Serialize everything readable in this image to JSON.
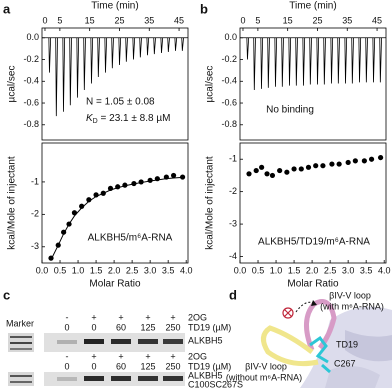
{
  "panel_labels": [
    "a",
    "b",
    "c",
    "d"
  ],
  "chart_data": [
    {
      "type": "spike",
      "x_label": "Time (min)",
      "y_label": "µcal/sec",
      "x": [
        1.5,
        3.8,
        6.2,
        8.5,
        10.9,
        13.2,
        15.6,
        17.9,
        20.3,
        22.6,
        25,
        27.3,
        29.7,
        32,
        34.4,
        36.7,
        39.1,
        41.4,
        43.8,
        46.1
      ],
      "values": [
        -0.32,
        -0.72,
        -0.68,
        -0.62,
        -0.55,
        -0.48,
        -0.42,
        -0.36,
        -0.32,
        -0.28,
        -0.25,
        -0.22,
        -0.2,
        -0.18,
        -0.16,
        -0.15,
        -0.14,
        -0.13,
        -0.12,
        -0.12
      ],
      "color": "#000000",
      "xlim": [
        -1,
        48
      ],
      "xticks": [
        0,
        5,
        15,
        25,
        35,
        45
      ],
      "ylim": [
        -0.94,
        0.09
      ],
      "yticks": [
        {
          "value": 0,
          "label": "0.0"
        },
        {
          "value": -0.2,
          "label": "-0.2"
        },
        {
          "value": -0.4,
          "label": "-0.4"
        },
        {
          "value": -0.6,
          "label": "-0.6"
        },
        {
          "value": -0.8,
          "label": "-0.8"
        }
      ],
      "annotation": "N = 1.05 ± 0.08",
      "kd": {
        "symbol": "K",
        "subscript": "D",
        "text": " = 23.1 ± 8.8 µM"
      }
    },
    {
      "type": "scatter",
      "x_label": "Molar Ratio",
      "y_label": "kcal/Mole of injectant",
      "x": [
        0.25,
        0.45,
        0.6,
        0.75,
        0.9,
        1.1,
        1.3,
        1.5,
        1.7,
        1.9,
        2.1,
        2.3,
        2.55,
        2.75,
        3.0,
        3.2,
        3.45,
        3.65,
        3.9
      ],
      "values": [
        -3.35,
        -2.95,
        -2.55,
        -2.3,
        -1.95,
        -1.75,
        -1.55,
        -1.4,
        -1.35,
        -1.2,
        -1.15,
        -1.1,
        -1.05,
        -1.0,
        -0.95,
        -0.9,
        -0.85,
        -0.8,
        -0.85
      ],
      "fit": [
        -3.4,
        -2.95,
        -2.6,
        -2.3,
        -2.05,
        -1.8,
        -1.6,
        -1.45,
        -1.35,
        -1.25,
        -1.18,
        -1.12,
        -1.06,
        -1.02,
        -0.97,
        -0.94,
        -0.9,
        -0.88,
        -0.86
      ],
      "color": "#000000",
      "xlim": [
        0,
        4.05
      ],
      "xticks": [
        {
          "value": 0,
          "label": "0.0"
        },
        {
          "value": 0.5,
          "label": "0.5"
        },
        {
          "value": 1,
          "label": "1.0"
        },
        {
          "value": 1.5,
          "label": "1.5"
        },
        {
          "value": 2,
          "label": "2.0"
        },
        {
          "value": 2.5,
          "label": "2.5"
        },
        {
          "value": 3,
          "label": "3.0"
        },
        {
          "value": 3.5,
          "label": "3.5"
        },
        {
          "value": 4,
          "label": "4.0"
        }
      ],
      "ylim": [
        -3.5,
        0.2
      ],
      "yticks": [
        -1,
        -2,
        -3
      ],
      "annotation": "ALKBH5/m⁶A-RNA"
    },
    {
      "type": "spike",
      "x_label": "Time (min)",
      "y_label": "µcal/sec",
      "x": [
        1.5,
        3.8,
        6.2,
        8.5,
        10.9,
        13.2,
        15.6,
        17.9,
        20.3,
        22.6,
        25,
        27.3,
        29.7,
        32,
        34.4,
        36.7,
        39.1,
        41.4,
        43.8,
        46.1
      ],
      "values": [
        -0.2,
        -0.48,
        -0.47,
        -0.46,
        -0.45,
        -0.45,
        -0.44,
        -0.44,
        -0.44,
        -0.43,
        -0.43,
        -0.43,
        -0.42,
        -0.42,
        -0.42,
        -0.42,
        -0.41,
        -0.41,
        -0.41,
        -0.41
      ],
      "color": "#000000",
      "xlim": [
        -1,
        48
      ],
      "xticks": [
        0,
        5,
        15,
        25,
        35,
        45
      ],
      "ylim": [
        -0.94,
        0.09
      ],
      "yticks": [
        {
          "value": 0,
          "label": "0.0"
        },
        {
          "value": -0.2,
          "label": "-0.2"
        },
        {
          "value": -0.4,
          "label": "-0.4"
        },
        {
          "value": -0.6,
          "label": "-0.6"
        },
        {
          "value": -0.8,
          "label": "-0.8"
        }
      ],
      "annotation": "No binding"
    },
    {
      "type": "scatter",
      "x_label": "Molar Ratio",
      "y_label": "kcal/Mole of injectant",
      "x": [
        0.25,
        0.45,
        0.6,
        0.75,
        0.9,
        1.1,
        1.3,
        1.5,
        1.7,
        1.9,
        2.1,
        2.3,
        2.55,
        2.75,
        3.0,
        3.2,
        3.45,
        3.65,
        3.9
      ],
      "values": [
        -1.45,
        -1.35,
        -1.25,
        -1.45,
        -1.5,
        -1.35,
        -1.4,
        -1.3,
        -1.3,
        -1.25,
        -1.2,
        -1.2,
        -1.15,
        -1.15,
        -1.1,
        -1.05,
        -1.05,
        -1.0,
        -0.95
      ],
      "color": "#000000",
      "xlim": [
        0,
        4.05
      ],
      "xticks": [
        {
          "value": 0,
          "label": "0.0"
        },
        {
          "value": 0.5,
          "label": "0.5"
        },
        {
          "value": 1,
          "label": "1.0"
        },
        {
          "value": 1.5,
          "label": "1.5"
        },
        {
          "value": 2,
          "label": "2.0"
        },
        {
          "value": 2.5,
          "label": "2.5"
        },
        {
          "value": 3,
          "label": "3.0"
        },
        {
          "value": 3.5,
          "label": "3.5"
        },
        {
          "value": 4,
          "label": "4.0"
        }
      ],
      "ylim": [
        -4.2,
        -0.5
      ],
      "yticks": [
        -1,
        -2,
        -3,
        -4
      ],
      "annotation": "ALKBH5/TD19/m⁶A-RNA"
    }
  ],
  "gel": {
    "marker": "Marker",
    "rows": [
      {
        "label": "2OG",
        "cells": [
          "-",
          "+",
          "+",
          "+",
          "+"
        ]
      },
      {
        "label": "TD19 (µM)",
        "cells": [
          "0",
          "0",
          "60",
          "125",
          "250"
        ]
      }
    ],
    "band_top": "ALKBH5",
    "band_bottom": [
      "ALKBH5",
      "C100SC267S"
    ]
  },
  "structure": {
    "loop_with": [
      "βIV-V loop",
      "(with m⁶A-RNA)"
    ],
    "ligand": "TD19",
    "residue": "C267",
    "loop_without": [
      "βIV-V loop",
      "(without m⁶A-RNA)"
    ]
  }
}
